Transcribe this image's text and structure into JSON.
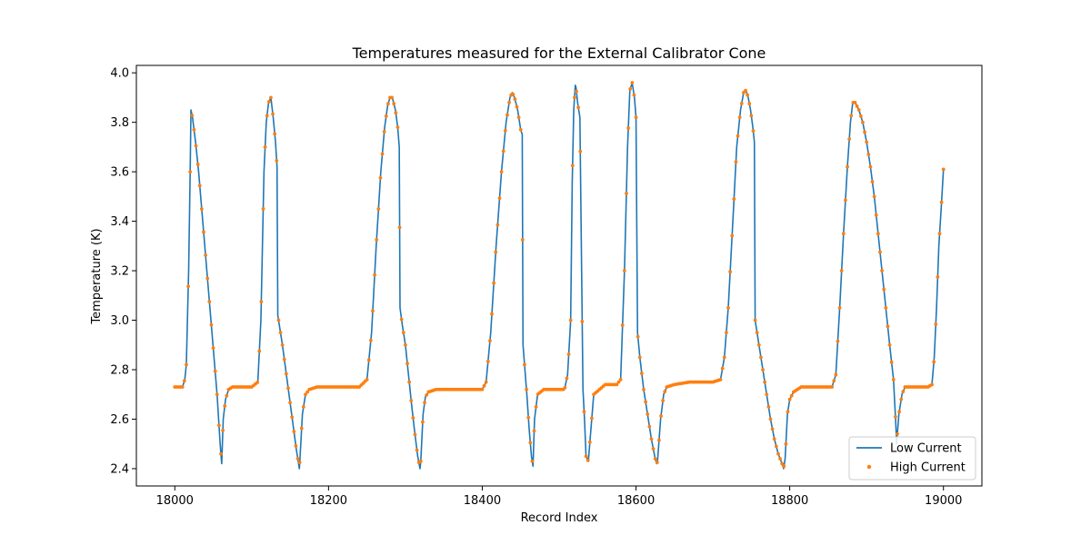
{
  "chart_data": {
    "type": "line",
    "title": "Temperatures measured for the External Calibrator Cone",
    "xlabel": "Record Index",
    "ylabel": "Temperature (K)",
    "xlim": [
      17950,
      19050
    ],
    "ylim": [
      2.33,
      4.03
    ],
    "xticks": [
      18000,
      18200,
      18400,
      18600,
      18800,
      19000
    ],
    "yticks": [
      2.4,
      2.6,
      2.8,
      3.0,
      3.2,
      3.4,
      3.6,
      3.8,
      4.0
    ],
    "legend_position": "lower-right",
    "grid": false,
    "colors": {
      "low_current": "#1f77b4",
      "high_current": "#ff7f0e"
    },
    "series": [
      {
        "name": "Low Current",
        "style": "line",
        "x": [
          18000,
          18010,
          18013,
          18015,
          18018,
          18020,
          18021,
          18023,
          18027,
          18031,
          18035,
          18039,
          18043,
          18047,
          18051,
          18055,
          18059,
          18061,
          18063,
          18066,
          18070,
          18075,
          18085,
          18100,
          18108,
          18112,
          18116,
          18119,
          18122,
          18125,
          18128,
          18131,
          18133,
          18134,
          18140,
          18146,
          18152,
          18158,
          18162,
          18163,
          18166,
          18170,
          18175,
          18185,
          18200,
          18220,
          18240,
          18250,
          18256,
          18262,
          18268,
          18273,
          18277,
          18280,
          18283,
          18287,
          18290,
          18292,
          18293,
          18296,
          18300,
          18304,
          18308,
          18312,
          18316,
          18319,
          18320,
          18323,
          18326,
          18330,
          18340,
          18360,
          18380,
          18400,
          18405,
          18411,
          18418,
          18425,
          18431,
          18436,
          18439,
          18442,
          18446,
          18450,
          18452,
          18453,
          18455,
          18458,
          18461,
          18464,
          18466,
          18468,
          18472,
          18480,
          18500,
          18507,
          18511,
          18515,
          18517,
          18519,
          18521,
          18522,
          18524,
          18527,
          18531,
          18533,
          18535,
          18538,
          18545,
          18560,
          18575,
          18580,
          18585,
          18589,
          18592,
          18595,
          18598,
          18600,
          18602,
          18605,
          18610,
          18615,
          18620,
          18625,
          18627,
          18628,
          18632,
          18636,
          18640,
          18650,
          18670,
          18700,
          18710,
          18715,
          18720,
          18726,
          18731,
          18736,
          18740,
          18743,
          18746,
          18749,
          18752,
          18754,
          18755,
          18760,
          18765,
          18770,
          18775,
          18780,
          18785,
          18790,
          18792,
          18794,
          18797,
          18800,
          18805,
          18815,
          18840,
          18855,
          18860,
          18865,
          18870,
          18875,
          18879,
          18882,
          18885,
          18890,
          18895,
          18900,
          18905,
          18910,
          18915,
          18920,
          18925,
          18930,
          18935,
          18938,
          18939,
          18942,
          18946,
          18950,
          18960,
          18970,
          18980,
          18985,
          18988,
          18991,
          18994,
          18997,
          19000
        ],
        "y": [
          2.73,
          2.73,
          2.76,
          2.82,
          3.2,
          3.6,
          3.85,
          3.82,
          3.72,
          3.6,
          3.45,
          3.3,
          3.15,
          3.0,
          2.85,
          2.7,
          2.5,
          2.42,
          2.6,
          2.68,
          2.72,
          2.73,
          2.73,
          2.73,
          2.75,
          3.0,
          3.6,
          3.8,
          3.88,
          3.9,
          3.82,
          3.72,
          3.62,
          3.02,
          2.9,
          2.76,
          2.62,
          2.48,
          2.4,
          2.45,
          2.62,
          2.7,
          2.72,
          2.73,
          2.73,
          2.73,
          2.73,
          2.76,
          2.95,
          3.3,
          3.6,
          3.78,
          3.87,
          3.9,
          3.9,
          3.85,
          3.78,
          3.7,
          3.05,
          2.98,
          2.9,
          2.78,
          2.66,
          2.55,
          2.45,
          2.4,
          2.43,
          2.62,
          2.69,
          2.71,
          2.72,
          2.72,
          2.72,
          2.72,
          2.75,
          2.95,
          3.3,
          3.6,
          3.8,
          3.9,
          3.92,
          3.9,
          3.85,
          3.77,
          3.75,
          2.9,
          2.82,
          2.7,
          2.56,
          2.45,
          2.41,
          2.6,
          2.7,
          2.72,
          2.72,
          2.72,
          2.78,
          3.0,
          3.55,
          3.85,
          3.95,
          3.94,
          3.88,
          3.82,
          2.72,
          2.6,
          2.45,
          2.43,
          2.7,
          2.74,
          2.74,
          2.76,
          3.2,
          3.7,
          3.93,
          3.96,
          3.9,
          3.82,
          2.95,
          2.85,
          2.72,
          2.62,
          2.52,
          2.44,
          2.42,
          2.43,
          2.6,
          2.7,
          2.73,
          2.74,
          2.75,
          2.75,
          2.76,
          2.85,
          3.05,
          3.4,
          3.7,
          3.85,
          3.92,
          3.93,
          3.9,
          3.85,
          3.78,
          3.72,
          3.0,
          2.9,
          2.8,
          2.7,
          2.6,
          2.52,
          2.46,
          2.42,
          2.4,
          2.44,
          2.62,
          2.68,
          2.71,
          2.73,
          2.73,
          2.73,
          2.78,
          3.05,
          3.35,
          3.62,
          3.8,
          3.88,
          3.88,
          3.85,
          3.8,
          3.72,
          3.62,
          3.5,
          3.35,
          3.2,
          3.05,
          2.9,
          2.76,
          2.58,
          2.5,
          2.62,
          2.7,
          2.73,
          2.73,
          2.73,
          2.73,
          2.74,
          2.85,
          3.05,
          3.3,
          3.45,
          3.61
        ]
      },
      {
        "name": "High Current",
        "style": "markers",
        "note_markers_follow_low_current_curve": true
      }
    ]
  }
}
